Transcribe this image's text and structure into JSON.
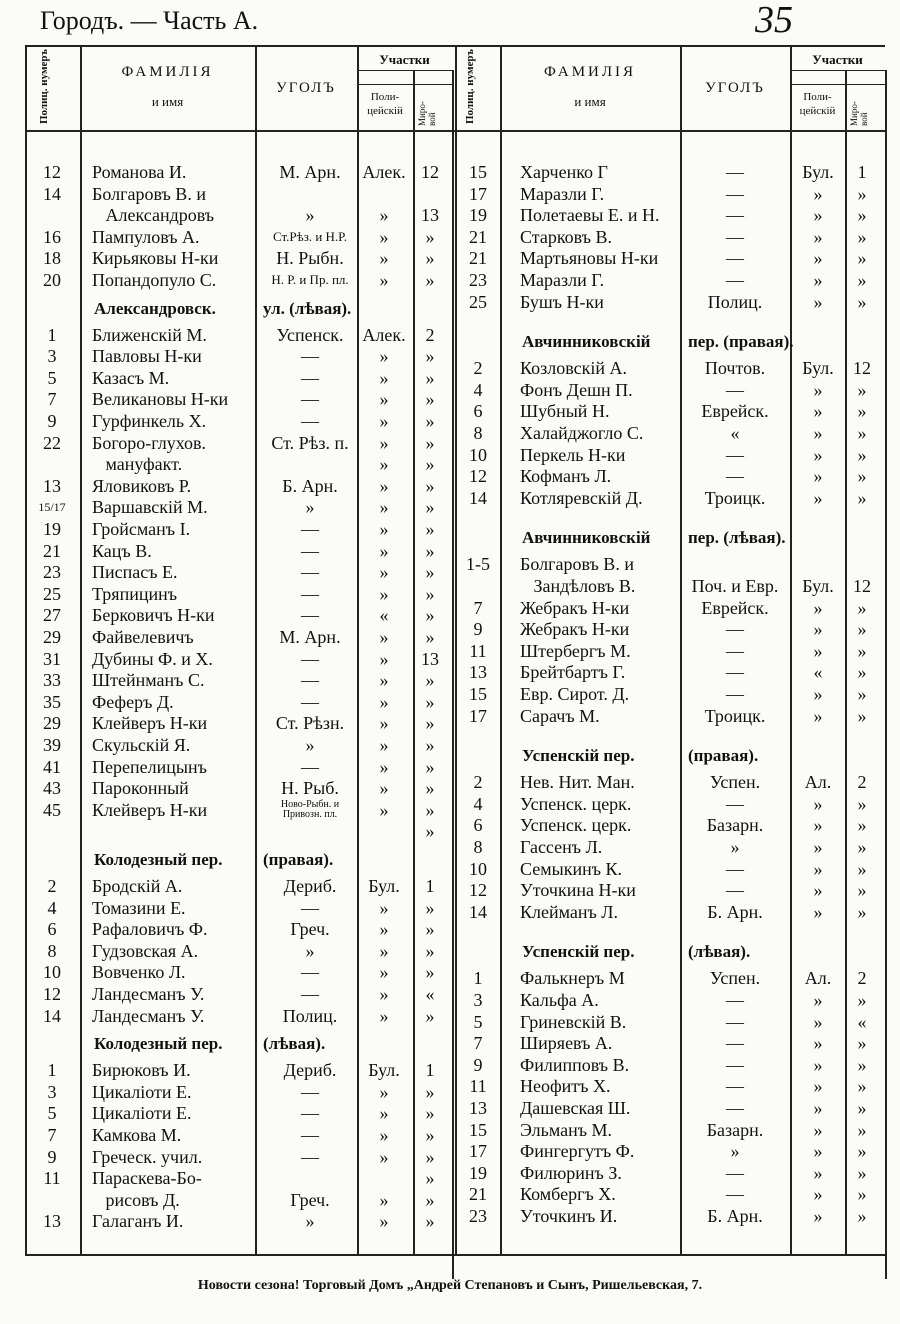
{
  "header": {
    "title": "Городъ. — Часть А.",
    "page": "35"
  },
  "columns": {
    "number": "Полиц. нумеръ",
    "name": "ФАМИЛІЯ",
    "name_sub": "и имя",
    "corner": "УГОЛЪ",
    "districts": "Участки",
    "police": "Поли-цейскій",
    "peace": "Миро-вой"
  },
  "table": {
    "left": [
      {
        "n": "12",
        "name": "Романова И.",
        "corner": "М. Арн.",
        "pol": "Алек.",
        "mir": "12"
      },
      {
        "n": "14",
        "name": "Болгаровъ В. и"
      },
      {
        "name": "   Александровъ",
        "corner": "»",
        "pol": "»",
        "mir": "13"
      },
      {
        "n": "16",
        "name": "Пампуловъ А.",
        "corner": "Ст.Рѣз. и Н.Р.",
        "pol": "»",
        "mir": "»"
      },
      {
        "n": "18",
        "name": "Кирьяковы Н-ки",
        "corner": "Н. Рыбн.",
        "pol": "»",
        "mir": "»"
      },
      {
        "n": "20",
        "name": "Попандопуло С.",
        "corner": "Н. Р. и Пр. пл.",
        "pol": "»",
        "mir": "»"
      },
      {
        "street": "Александровск.",
        "side": "ул. (лѣвая)."
      },
      {
        "n": "1",
        "name": "Ближенскій М.",
        "corner": "Успенск.",
        "pol": "Алек.",
        "mir": "2"
      },
      {
        "n": "3",
        "name": "Павловы Н-ки",
        "corner": "—",
        "pol": "»",
        "mir": "»"
      },
      {
        "n": "5",
        "name": "Казасъ М.",
        "corner": "—",
        "pol": "»",
        "mir": "»"
      },
      {
        "n": "7",
        "name": "Великановы Н-ки",
        "corner": "—",
        "pol": "»",
        "mir": "»"
      },
      {
        "n": "9",
        "name": "Гурфинкель Х.",
        "corner": "—",
        "pol": "»",
        "mir": "»"
      },
      {
        "n": "22",
        "name": "Богоро-глухов.",
        "corner": "Ст. Рѣз. п.",
        "pol": "»",
        "mir": "»"
      },
      {
        "name": "   мануфакт.",
        "pol": "»",
        "mir": "»"
      },
      {
        "n": "13",
        "name": "Яловиковъ Р.",
        "corner": "Б. Арн.",
        "pol": "»",
        "mir": "»"
      },
      {
        "n": "15/17",
        "name": "Варшавскій М.",
        "corner": "»",
        "pol": "»",
        "mir": "»"
      },
      {
        "n": "19",
        "name": "Гройсманъ I.",
        "corner": "—",
        "pol": "»",
        "mir": "»"
      },
      {
        "n": "21",
        "name": "Кацъ В.",
        "corner": "—",
        "pol": "»",
        "mir": "»"
      },
      {
        "n": "23",
        "name": "Писпасъ Е.",
        "corner": "—",
        "pol": "»",
        "mir": "»"
      },
      {
        "n": "25",
        "name": "Тряпицинъ",
        "corner": "—",
        "pol": "»",
        "mir": "»"
      },
      {
        "n": "27",
        "name": "Берковичъ Н-ки",
        "corner": "—",
        "pol": "«",
        "mir": "»"
      },
      {
        "n": "29",
        "name": "Файвелевичъ",
        "corner": "М. Арн.",
        "pol": "»",
        "mir": "»"
      },
      {
        "n": "31",
        "name": "Дубины Ф. и Х.",
        "corner": "—",
        "pol": "»",
        "mir": "13"
      },
      {
        "n": "33",
        "name": "Штейнманъ С.",
        "corner": "—",
        "pol": "»",
        "mir": "»"
      },
      {
        "n": "35",
        "name": "Феферъ Д.",
        "corner": "—",
        "pol": "»",
        "mir": "»"
      },
      {
        "n": "29",
        "name": "Клейверъ Н-ки",
        "corner": "Ст. Рѣзн.",
        "pol": "»",
        "mir": "»"
      },
      {
        "n": "39",
        "name": "Скульскій Я.",
        "corner": "»",
        "pol": "»",
        "mir": "»"
      },
      {
        "n": "41",
        "name": "Перепелицынъ",
        "corner": "—",
        "pol": "»",
        "mir": "»"
      },
      {
        "n": "43",
        "name": "Пароконный",
        "corner": "Н. Рыб.",
        "pol": "»",
        "mir": "»"
      },
      {
        "n": "45",
        "name": "Клейверъ Н-ки",
        "corner": "Ново-Рыбн. и Привозн. пл.",
        "pol": "»",
        "mir": "»"
      },
      {
        "mir": "»"
      },
      {
        "street": "Колодезный пер.",
        "side": "(правая)."
      },
      {
        "n": "2",
        "name": "Бродскій А.",
        "corner": "Дериб.",
        "pol": "Бул.",
        "mir": "1"
      },
      {
        "n": "4",
        "name": "Томазини Е.",
        "corner": "—",
        "pol": "»",
        "mir": "»"
      },
      {
        "n": "6",
        "name": "Рафаловичъ Ф.",
        "corner": "Греч.",
        "pol": "»",
        "mir": "»"
      },
      {
        "n": "8",
        "name": "Гудзовская А.",
        "corner": "»",
        "pol": "»",
        "mir": "»"
      },
      {
        "n": "10",
        "name": "Вовченко Л.",
        "corner": "—",
        "pol": "»",
        "mir": "»"
      },
      {
        "n": "12",
        "name": "Ландесманъ У.",
        "corner": "—",
        "pol": "»",
        "mir": "«"
      },
      {
        "n": "14",
        "name": "Ландесманъ У.",
        "corner": "Полиц.",
        "pol": "»",
        "mir": "»"
      },
      {
        "street": "Колодезный пер.",
        "side": "(лѣвая)."
      },
      {
        "n": "1",
        "name": "Бирюковъ И.",
        "corner": "Дериб.",
        "pol": "Бул.",
        "mir": "1"
      },
      {
        "n": "3",
        "name": "Цикаліоти Е.",
        "corner": "—",
        "pol": "»",
        "mir": "»"
      },
      {
        "n": "5",
        "name": "Цикаліоти Е.",
        "corner": "—",
        "pol": "»",
        "mir": "»"
      },
      {
        "n": "7",
        "name": "Камкова М.",
        "corner": "—",
        "pol": "»",
        "mir": "»"
      },
      {
        "n": "9",
        "name": "Греческ. учил.",
        "corner": "—",
        "pol": "»",
        "mir": "»"
      },
      {
        "n": "11",
        "name": "Параскева-Бо-",
        "mir": "»"
      },
      {
        "name": "   рисовъ Д.",
        "corner": "Греч.",
        "pol": "»",
        "mir": "»"
      },
      {
        "n": "13",
        "name": "Галаганъ И.",
        "corner": "»",
        "pol": "»",
        "mir": "»"
      }
    ],
    "right": [
      {
        "n": "15",
        "name": "Харченко Г",
        "corner": "—",
        "pol": "Бул.",
        "mir": "1"
      },
      {
        "n": "17",
        "name": "Маразли Г.",
        "corner": "—",
        "pol": "»",
        "mir": "»"
      },
      {
        "n": "19",
        "name": "Полетаевы Е. и Н.",
        "corner": "—",
        "pol": "»",
        "mir": "»"
      },
      {
        "n": "21",
        "name": "Старковъ В.",
        "corner": "—",
        "pol": "»",
        "mir": "»"
      },
      {
        "n": "21",
        "name": "Мартьяновы Н-ки",
        "corner": "—",
        "pol": "»",
        "mir": "»"
      },
      {
        "n": "23",
        "name": "Маразли Г.",
        "corner": "—",
        "pol": "»",
        "mir": "»"
      },
      {
        "n": "25",
        "name": "Бушъ Н-ки",
        "corner": "Полиц.",
        "pol": "»",
        "mir": "»"
      },
      {
        "street": "Авчинниковскій",
        "side": "пер. (правая)."
      },
      {
        "n": "2",
        "name": "Козловскій А.",
        "corner": "Почтов.",
        "pol": "Бул.",
        "mir": "12"
      },
      {
        "n": "4",
        "name": "Фонъ Дешн П.",
        "corner": "—",
        "pol": "»",
        "mir": "»"
      },
      {
        "n": "6",
        "name": "Шубный Н.",
        "corner": "Еврейск.",
        "pol": "»",
        "mir": "»"
      },
      {
        "n": "8",
        "name": "Халайджогло С.",
        "corner": "«",
        "pol": "»",
        "mir": "»"
      },
      {
        "n": "10",
        "name": "Перкель Н-ки",
        "corner": "—",
        "pol": "»",
        "mir": "»"
      },
      {
        "n": "12",
        "name": "Кофманъ Л.",
        "corner": "—",
        "pol": "»",
        "mir": "»"
      },
      {
        "n": "14",
        "name": "Котляревскій Д.",
        "corner": "Троицк.",
        "pol": "»",
        "mir": "»"
      },
      {
        "street": "Авчинниковскій",
        "side": "пер. (лѣвая)."
      },
      {
        "n": "1-5",
        "name": "Болгаровъ В. и"
      },
      {
        "name": "   Зандѣловъ В.",
        "corner": "Поч. и Евр.",
        "pol": "Бул.",
        "mir": "12"
      },
      {
        "n": "7",
        "name": "Жебракъ Н-ки",
        "corner": "Еврейск.",
        "pol": "»",
        "mir": "»"
      },
      {
        "n": "9",
        "name": "Жебракъ Н-ки",
        "corner": "—",
        "pol": "»",
        "mir": "»"
      },
      {
        "n": "11",
        "name": "Штербергъ М.",
        "corner": "—",
        "pol": "»",
        "mir": "»"
      },
      {
        "n": "13",
        "name": "Брейтбартъ Г.",
        "corner": "—",
        "pol": "«",
        "mir": "»"
      },
      {
        "n": "15",
        "name": "Евр. Сирот. Д.",
        "corner": "—",
        "pol": "»",
        "mir": "»"
      },
      {
        "n": "17",
        "name": "Сарачъ М.",
        "corner": "Троицк.",
        "pol": "»",
        "mir": "»"
      },
      {
        "street": "Успенскій пер.",
        "side": "(правая)."
      },
      {
        "n": "2",
        "name": "Нев. Нит. Ман.",
        "corner": "Успен.",
        "pol": "Ал.",
        "mir": "2"
      },
      {
        "n": "4",
        "name": "Успенск. церк.",
        "corner": "—",
        "pol": "»",
        "mir": "»"
      },
      {
        "n": "6",
        "name": "Успенск. церк.",
        "corner": "Базарн.",
        "pol": "»",
        "mir": "»"
      },
      {
        "n": "8",
        "name": "Гассенъ Л.",
        "corner": "»",
        "pol": "»",
        "mir": "»"
      },
      {
        "n": "10",
        "name": "Семыкинъ К.",
        "corner": "—",
        "pol": "»",
        "mir": "»"
      },
      {
        "n": "12",
        "name": "Уточкина Н-ки",
        "corner": "—",
        "pol": "»",
        "mir": "»"
      },
      {
        "n": "14",
        "name": "Клейманъ Л.",
        "corner": "Б. Арн.",
        "pol": "»",
        "mir": "»"
      },
      {
        "street": "Успенскій пер.",
        "side": "(лѣвая)."
      },
      {
        "n": "1",
        "name": "Фалькнеръ М",
        "corner": "Успен.",
        "pol": "Ал.",
        "mir": "2"
      },
      {
        "n": "3",
        "name": "Кальфа А.",
        "corner": "—",
        "pol": "»",
        "mir": "»"
      },
      {
        "n": "5",
        "name": "Гриневскій В.",
        "corner": "—",
        "pol": "»",
        "mir": "«"
      },
      {
        "n": "7",
        "name": "Ширяевъ А.",
        "corner": "—",
        "pol": "»",
        "mir": "»"
      },
      {
        "n": "9",
        "name": "Филипповъ В.",
        "corner": "—",
        "pol": "»",
        "mir": "»"
      },
      {
        "n": "11",
        "name": "Неофитъ Х.",
        "corner": "—",
        "pol": "»",
        "mir": "»"
      },
      {
        "n": "13",
        "name": "Дашевская Ш.",
        "corner": "—",
        "pol": "»",
        "mir": "»"
      },
      {
        "n": "15",
        "name": "Эльманъ М.",
        "corner": "Базарн.",
        "pol": "»",
        "mir": "»"
      },
      {
        "n": "17",
        "name": "Фингергутъ Ф.",
        "corner": "»",
        "pol": "»",
        "mir": "»"
      },
      {
        "n": "19",
        "name": "Филюринъ З.",
        "corner": "—",
        "pol": "»",
        "mir": "»"
      },
      {
        "n": "21",
        "name": "Комбергъ Х.",
        "corner": "—",
        "pol": "»",
        "mir": "»"
      },
      {
        "n": "23",
        "name": "Уточкинъ И.",
        "corner": "Б. Арн.",
        "pol": "»",
        "mir": "»"
      }
    ]
  },
  "footer": "Новости сезона! Торговый Домъ „Андрей Степановъ и Сынъ, Ришельевская, 7."
}
